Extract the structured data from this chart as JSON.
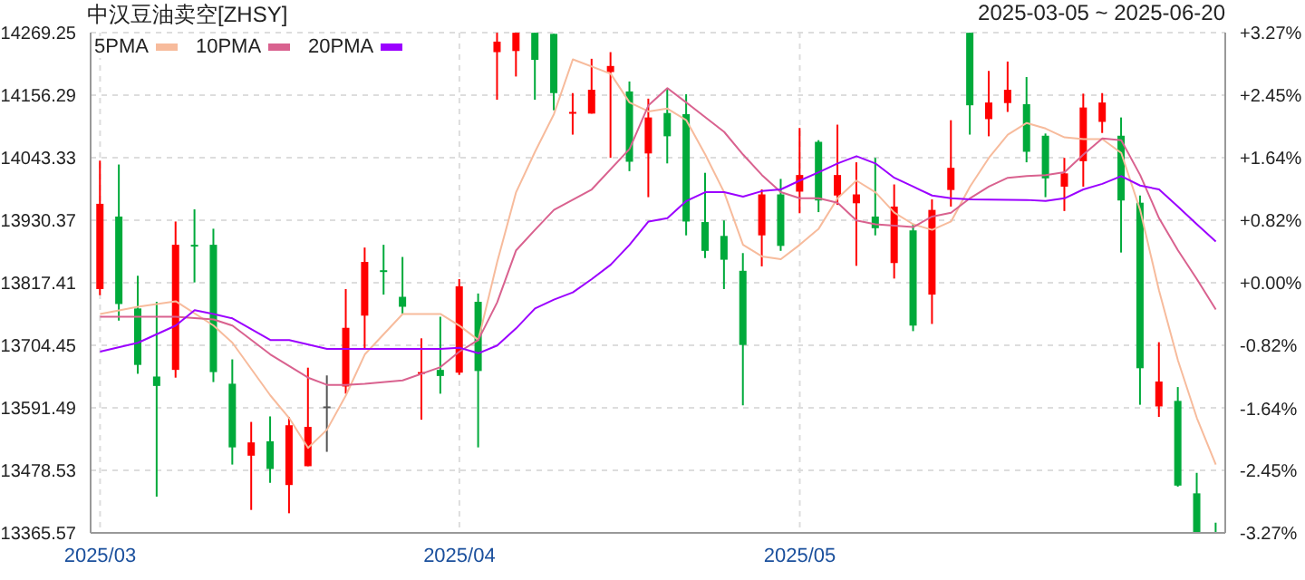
{
  "chart_data": {
    "type": "candlestick",
    "title": "中汉豆油卖空[ZHSY]",
    "subtitle": "2025-03-05 ~ 2025-06-20",
    "categories": [
      "2025/03",
      null,
      null,
      null,
      null,
      null,
      null,
      null,
      null,
      null,
      null,
      null,
      null,
      null,
      null,
      null,
      null,
      null,
      null,
      "2025/04",
      null,
      null,
      null,
      null,
      null,
      null,
      null,
      null,
      null,
      null,
      null,
      null,
      null,
      null,
      null,
      null,
      null,
      "2025/05",
      null,
      null,
      null,
      null,
      null,
      null,
      null,
      null,
      null,
      null,
      null,
      null,
      null,
      null,
      null,
      null,
      null,
      null,
      null,
      null,
      null,
      null
    ],
    "ohlc": [
      [
        13806,
        14038,
        13795,
        13960
      ],
      [
        13937,
        14031,
        13749,
        13779
      ],
      [
        13771,
        13830,
        13653,
        13669
      ],
      [
        13648,
        13783,
        13431,
        13631
      ],
      [
        13660,
        13928,
        13646,
        13886
      ],
      [
        13886,
        13950,
        13818,
        13883
      ],
      [
        13886,
        13915,
        13638,
        13656
      ],
      [
        13635,
        13679,
        13489,
        13520
      ],
      [
        13505,
        13566,
        13407,
        13529
      ],
      [
        13531,
        13576,
        13456,
        13481
      ],
      [
        13452,
        13575,
        13401,
        13560
      ],
      [
        13486,
        13664,
        13486,
        13557
      ],
      [
        13594,
        13650,
        13512,
        13594
      ],
      [
        13630,
        13806,
        13617,
        13736
      ],
      [
        13758,
        13881,
        13698,
        13855
      ],
      [
        13840,
        13886,
        13796,
        13837
      ],
      [
        13792,
        13864,
        13761,
        13774
      ],
      [
        13653,
        13717,
        13570,
        13656
      ],
      [
        13660,
        13756,
        13617,
        13649
      ],
      [
        13655,
        13824,
        13651,
        13811
      ],
      [
        13783,
        13798,
        13520,
        13658
      ],
      [
        14234,
        14269,
        14148,
        14253
      ],
      [
        14236,
        14269,
        14190,
        14269
      ],
      [
        14269,
        14269,
        14148,
        14220
      ],
      [
        14267,
        14267,
        14129,
        14160
      ],
      [
        14124,
        14160,
        14085,
        14126
      ],
      [
        14123,
        14222,
        14123,
        14166
      ],
      [
        14198,
        14234,
        14043,
        14209
      ],
      [
        14163,
        14181,
        14019,
        14036
      ],
      [
        14051,
        14150,
        13972,
        14116
      ],
      [
        14124,
        14169,
        14033,
        14082
      ],
      [
        14122,
        14158,
        13903,
        13928
      ],
      [
        13927,
        14016,
        13862,
        13875
      ],
      [
        13902,
        13930,
        13806,
        13859
      ],
      [
        13839,
        13871,
        13596,
        13705
      ],
      [
        13903,
        13986,
        13847,
        13977
      ],
      [
        13977,
        14005,
        13875,
        13884
      ],
      [
        13982,
        14097,
        13943,
        14012
      ],
      [
        14072,
        14075,
        13945,
        13966
      ],
      [
        13975,
        14103,
        13958,
        14012
      ],
      [
        13961,
        14035,
        13848,
        13977
      ],
      [
        13937,
        14043,
        13903,
        13916
      ],
      [
        13853,
        13995,
        13825,
        13955
      ],
      [
        13912,
        13924,
        13730,
        13740
      ],
      [
        13796,
        13968,
        13743,
        13949
      ],
      [
        13985,
        14111,
        13955,
        14025
      ],
      [
        14269,
        14269,
        14085,
        14138
      ],
      [
        14113,
        14200,
        14082,
        14143
      ],
      [
        14142,
        14217,
        14126,
        14166
      ],
      [
        14140,
        14189,
        14035,
        14054
      ],
      [
        14083,
        14087,
        13972,
        14006
      ],
      [
        13991,
        14043,
        13947,
        14015
      ],
      [
        14037,
        14159,
        13991,
        14134
      ],
      [
        14108,
        14160,
        14088,
        14143
      ],
      [
        14083,
        14116,
        13872,
        13966
      ],
      [
        13962,
        13975,
        13597,
        13663
      ],
      [
        13594,
        13710,
        13575,
        13639
      ],
      [
        13604,
        13629,
        13449,
        13451
      ],
      [
        13437,
        13474,
        13366,
        13366
      ],
      [
        13367,
        13384,
        13366,
        13366
      ]
    ],
    "colors": [
      "#ff0000",
      "#00aa3b",
      "#00aa3b",
      "#00aa3b",
      "#ff0000",
      "#00aa3b",
      "#00aa3b",
      "#00aa3b",
      "#ff0000",
      "#00aa3b",
      "#ff0000",
      "#ff0000",
      "#555555",
      "#ff0000",
      "#ff0000",
      "#00aa3b",
      "#00aa3b",
      "#ff0000",
      "#00aa3b",
      "#ff0000",
      "#00aa3b",
      "#ff0000",
      "#ff0000",
      "#00aa3b",
      "#00aa3b",
      "#ff0000",
      "#ff0000",
      "#ff0000",
      "#00aa3b",
      "#ff0000",
      "#00aa3b",
      "#00aa3b",
      "#00aa3b",
      "#00aa3b",
      "#00aa3b",
      "#ff0000",
      "#00aa3b",
      "#ff0000",
      "#00aa3b",
      "#ff0000",
      "#ff0000",
      "#00aa3b",
      "#ff0000",
      "#00aa3b",
      "#ff0000",
      "#ff0000",
      "#00aa3b",
      "#ff0000",
      "#ff0000",
      "#00aa3b",
      "#00aa3b",
      "#ff0000",
      "#ff0000",
      "#ff0000",
      "#00aa3b",
      "#00aa3b",
      "#ff0000",
      "#00aa3b",
      "#00aa3b",
      "#00aa3b"
    ],
    "series": [
      {
        "type": "line",
        "name": "5PMA",
        "color": "#f7bb9c",
        "values": [
          13761,
          null,
          13774,
          null,
          13784,
          null,
          13740,
          13709,
          null,
          13614,
          13573,
          13519,
          13552,
          13614,
          13688,
          null,
          13761,
          null,
          13761,
          13740,
          13714,
          13855,
          13981,
          14054,
          14122,
          14221,
          null,
          14195,
          14143,
          14127,
          14132,
          14111,
          14049,
          13981,
          13886,
          13865,
          13860,
          13886,
          13915,
          13970,
          14002,
          13981,
          13944,
          13923,
          13913,
          13928,
          13991,
          14043,
          14085,
          14106,
          14096,
          14080,
          14077,
          14077,
          14052,
          13949,
          13803,
          13677,
          13573,
          13489
        ]
      },
      {
        "type": "line",
        "name": "10PMA",
        "color": "#d9628f",
        "values": [
          13756,
          null,
          13756,
          null,
          13756,
          null,
          13751,
          13740,
          null,
          13688,
          13667,
          13646,
          13633,
          13633,
          13635,
          null,
          13641,
          null,
          13665,
          13693,
          13714,
          13782,
          13876,
          13913,
          13949,
          null,
          13986,
          null,
          14059,
          14138,
          14169,
          14143,
          null,
          14090,
          14049,
          14012,
          13981,
          13970,
          13970,
          13962,
          13930,
          13923,
          null,
          13918,
          13937,
          13944,
          13970,
          13991,
          14007,
          14010,
          14012,
          14017,
          14049,
          14078,
          14075,
          14012,
          13934,
          13876,
          13824,
          13769
        ]
      },
      {
        "type": "line",
        "name": "20PMA",
        "color": "#9b00ff",
        "values": [
          13693,
          null,
          13709,
          null,
          13740,
          13768,
          13761,
          13753,
          null,
          13714,
          13714,
          null,
          13698,
          null,
          13698,
          null,
          13698,
          null,
          13698,
          13700,
          13690,
          13704,
          13735,
          13771,
          13787,
          13800,
          13824,
          13850,
          13886,
          13928,
          13934,
          13965,
          13981,
          13981,
          13973,
          13983,
          13986,
          14002,
          14017,
          14033,
          14046,
          14033,
          14007,
          13991,
          13975,
          13970,
          13968,
          null,
          null,
          13967,
          13965,
          13970,
          13986,
          13996,
          14010,
          13993,
          13986,
          13955,
          13923,
          13892
        ]
      }
    ],
    "ylim": [
      13365.57,
      14269.25
    ],
    "yticks": [
      13365.57,
      13478.53,
      13591.49,
      13704.45,
      13817.41,
      13930.37,
      14043.33,
      14156.29,
      14269.25
    ],
    "y2lim": [
      -3.27,
      3.27
    ],
    "y2ticks": [
      {
        "value": -3.27,
        "label": "-3.27%"
      },
      {
        "value": -2.45,
        "label": "-2.45%"
      },
      {
        "value": -1.64,
        "label": "-1.64%"
      },
      {
        "value": -0.82,
        "label": "-0.82%"
      },
      {
        "value": 0,
        "label": "+0.00%"
      },
      {
        "value": 0.82,
        "label": "+0.82%"
      },
      {
        "value": 1.64,
        "label": "+1.64%"
      },
      {
        "value": 2.45,
        "label": "+2.45%"
      },
      {
        "value": 3.27,
        "label": "+3.27%"
      }
    ],
    "grid": true,
    "legend": "top left",
    "marker": "none"
  }
}
